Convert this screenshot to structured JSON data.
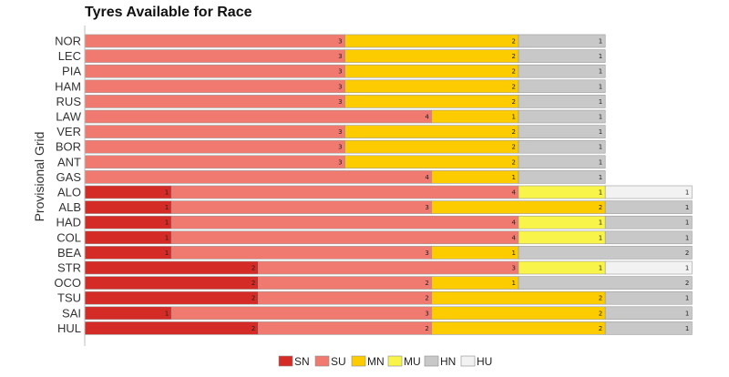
{
  "chart_data": {
    "type": "bar",
    "orientation": "horizontal",
    "stacked": true,
    "title": "Tyres Available for Race",
    "ylabel": "Provisional Grid",
    "xlabel": "",
    "legend_position": "bottom-center",
    "grid": false,
    "categories": [
      "NOR",
      "LEC",
      "PIA",
      "HAM",
      "RUS",
      "LAW",
      "VER",
      "BOR",
      "ANT",
      "GAS",
      "ALO",
      "ALB",
      "HAD",
      "COL",
      "BEA",
      "STR",
      "OCO",
      "TSU",
      "SAI",
      "HUL"
    ],
    "series": [
      {
        "name": "SN",
        "color": "#d42b26",
        "values": [
          0,
          0,
          0,
          0,
          0,
          0,
          0,
          0,
          0,
          0,
          1,
          1,
          1,
          1,
          1,
          2,
          2,
          2,
          1,
          2
        ]
      },
      {
        "name": "SU",
        "color": "#f17a70",
        "values": [
          3,
          3,
          3,
          3,
          3,
          4,
          3,
          3,
          3,
          4,
          4,
          3,
          4,
          4,
          3,
          3,
          2,
          2,
          3,
          2
        ]
      },
      {
        "name": "MN",
        "color": "#fccc00",
        "values": [
          2,
          2,
          2,
          2,
          2,
          1,
          2,
          2,
          2,
          1,
          0,
          2,
          0,
          0,
          1,
          0,
          1,
          2,
          2,
          2
        ]
      },
      {
        "name": "MU",
        "color": "#f8f44a",
        "values": [
          0,
          0,
          0,
          0,
          0,
          0,
          0,
          0,
          0,
          0,
          1,
          0,
          1,
          1,
          0,
          1,
          0,
          0,
          0,
          0
        ]
      },
      {
        "name": "HN",
        "color": "#c8c8c8",
        "values": [
          1,
          1,
          1,
          1,
          1,
          1,
          1,
          1,
          1,
          1,
          0,
          1,
          1,
          1,
          2,
          0,
          2,
          1,
          1,
          1
        ]
      },
      {
        "name": "HU",
        "color": "#f2f2f2",
        "values": [
          0,
          0,
          0,
          0,
          0,
          0,
          0,
          0,
          0,
          0,
          1,
          0,
          0,
          0,
          0,
          1,
          0,
          0,
          0,
          0
        ]
      }
    ]
  }
}
